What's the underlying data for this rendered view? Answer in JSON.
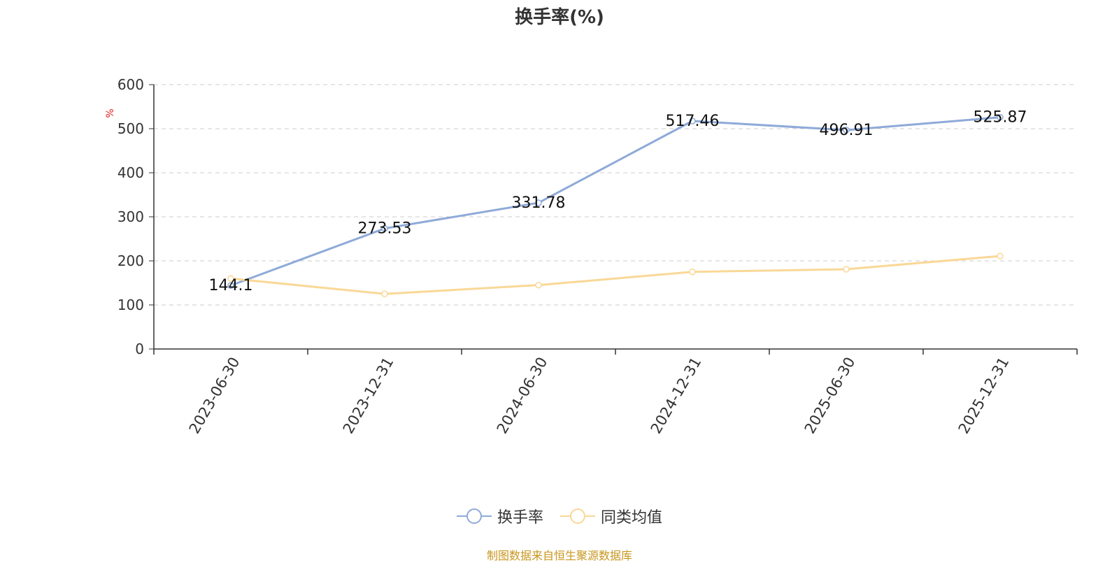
{
  "chart_data": {
    "type": "line",
    "title": "换手率(%)",
    "ylabel": "%",
    "xlabel": "",
    "categories": [
      "2023-06-30",
      "2023-12-31",
      "2024-06-30",
      "2024-12-31",
      "2025-06-30",
      "2025-12-31"
    ],
    "ylim": [
      0,
      600
    ],
    "yticks": [
      0,
      100,
      200,
      300,
      400,
      500,
      600
    ],
    "grid": true,
    "legend_position": "bottom",
    "series": [
      {
        "name": "换手率",
        "values": [
          144.1,
          273.53,
          331.78,
          517.46,
          496.91,
          525.87
        ],
        "color": "#8eaad8",
        "data_labels": true
      },
      {
        "name": "同类均值",
        "values": [
          160,
          125,
          145,
          175,
          181,
          211
        ],
        "color": "#f9d897",
        "data_labels": false
      }
    ]
  },
  "source": "制图数据来自恒生聚源数据库"
}
